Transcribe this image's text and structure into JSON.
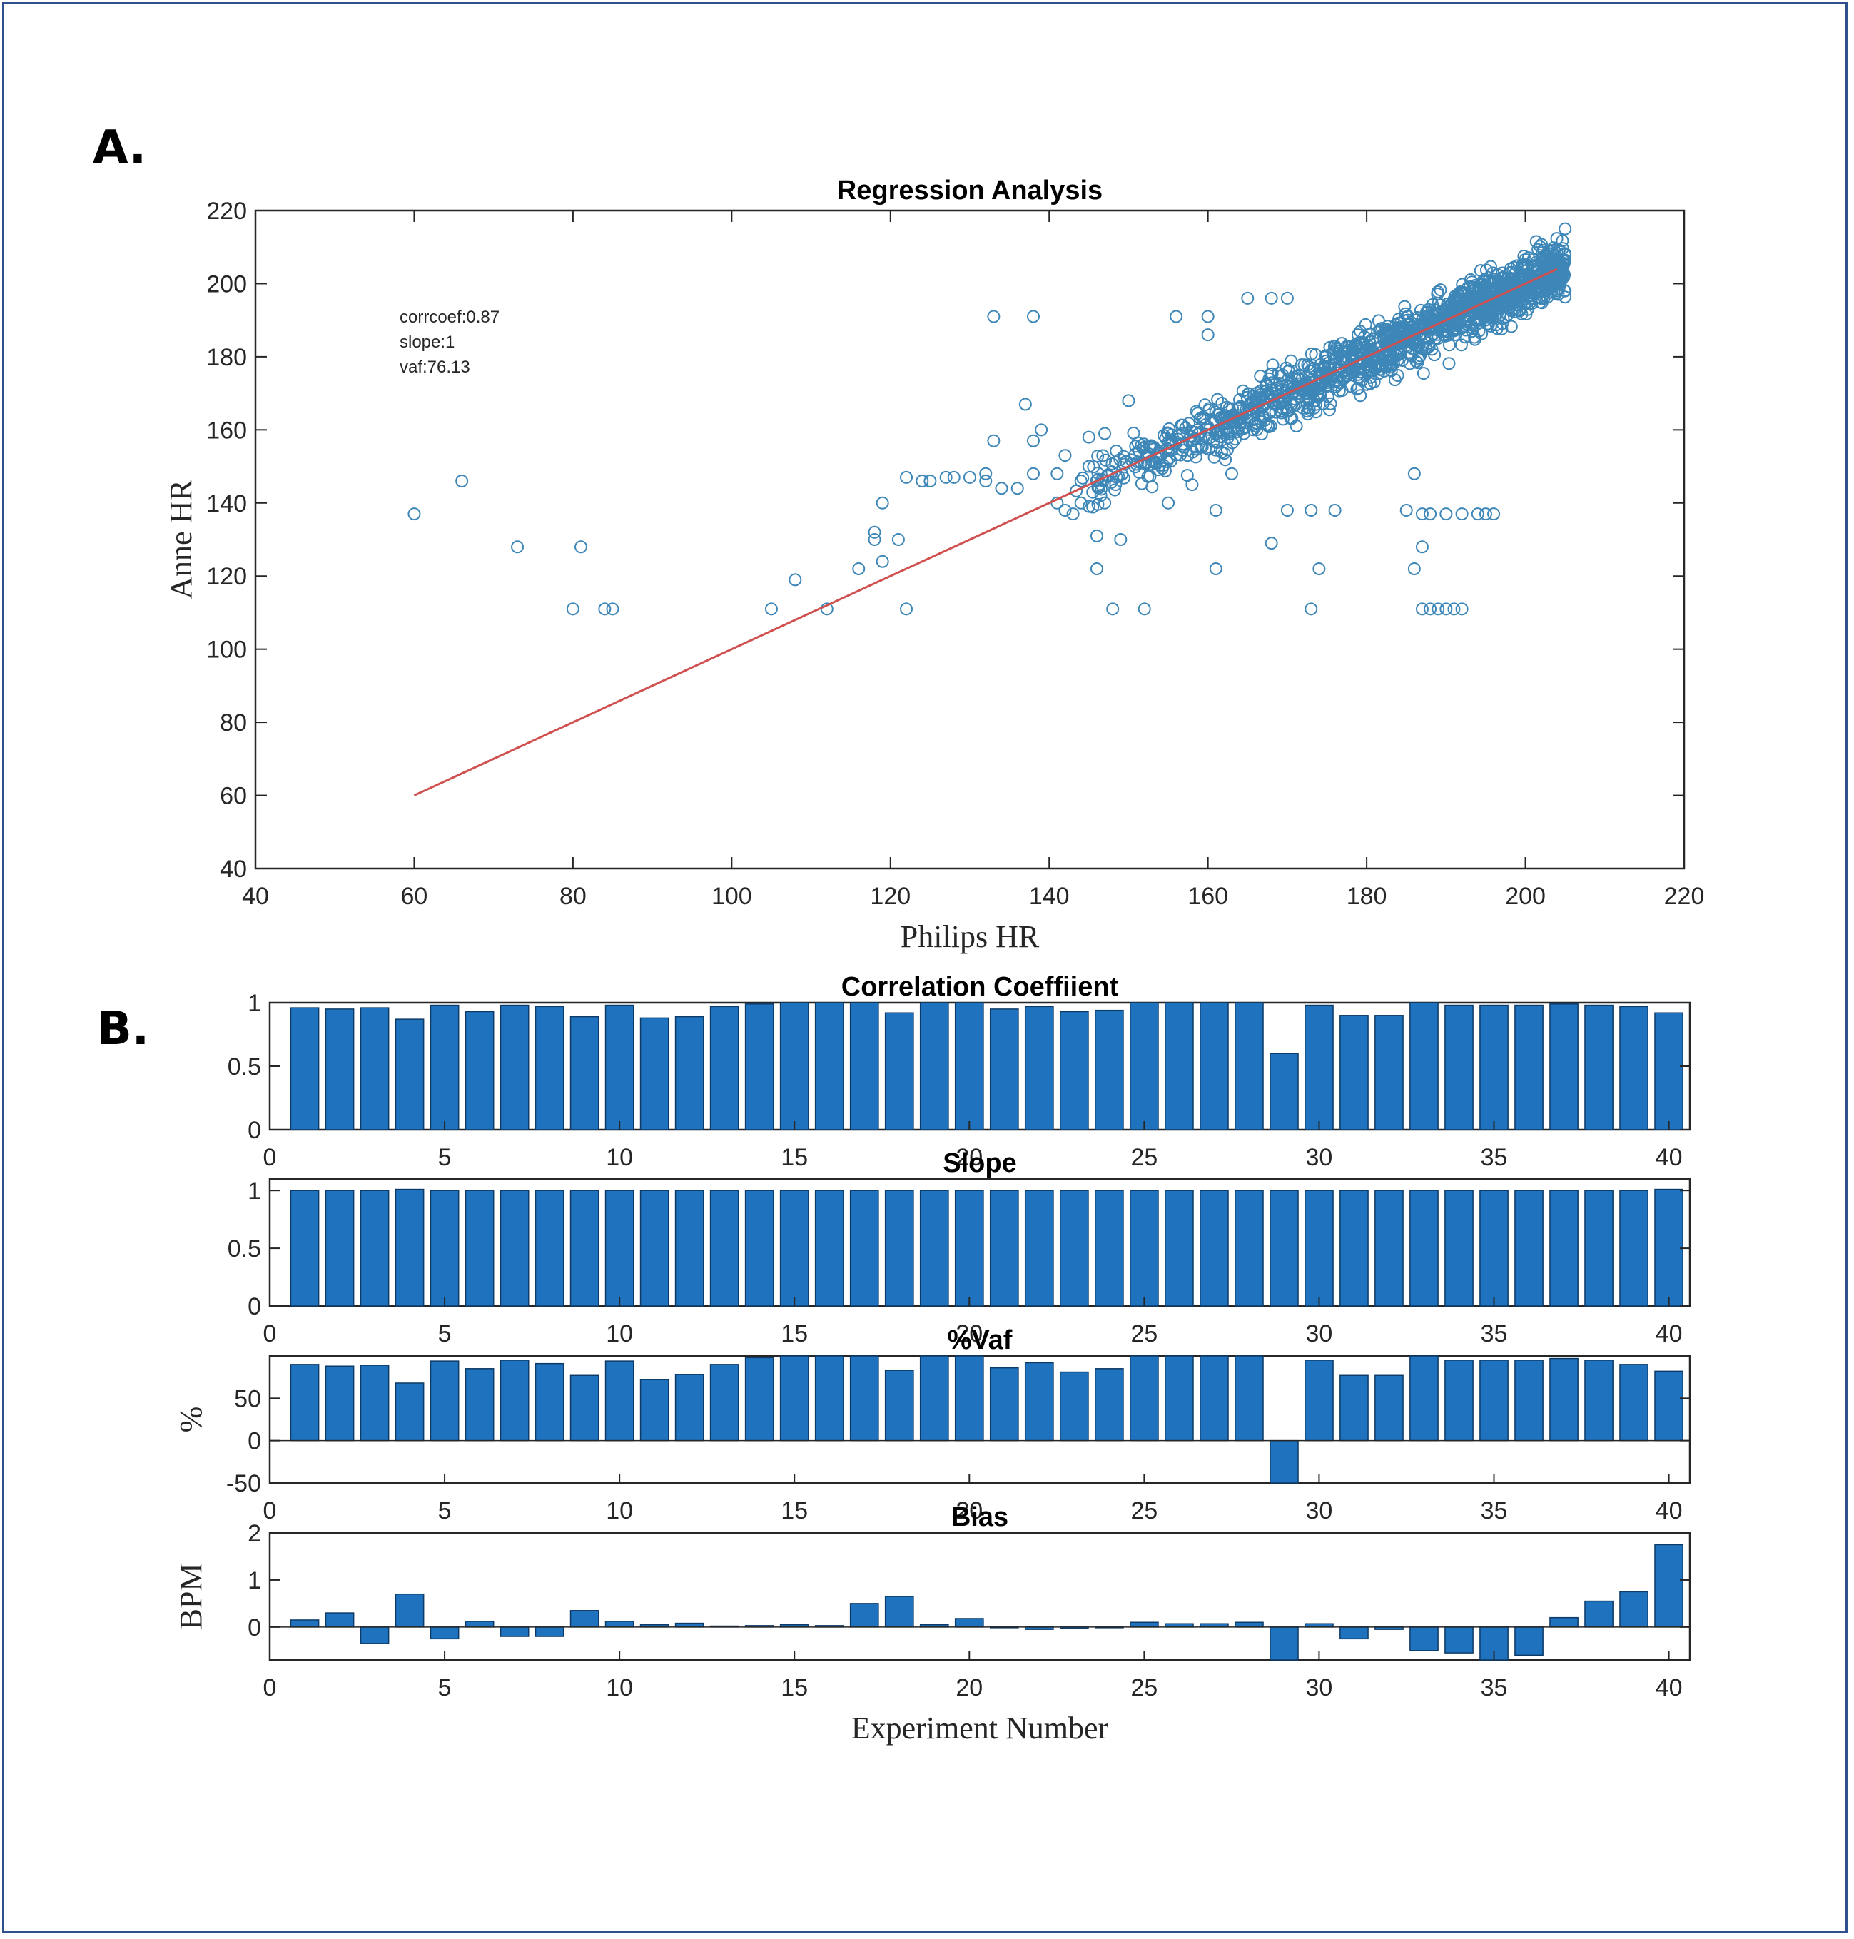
{
  "panels": {
    "a_label": "A.",
    "b_label": "B."
  },
  "chart_data": [
    {
      "type": "scatter",
      "title": "Regression Analysis",
      "xlabel": "Philips HR",
      "ylabel": "Anne HR",
      "xlim": [
        40,
        220
      ],
      "ylim": [
        40,
        220
      ],
      "xticks": [
        40,
        60,
        80,
        100,
        120,
        140,
        160,
        180,
        200,
        220
      ],
      "yticks": [
        40,
        60,
        80,
        100,
        120,
        140,
        160,
        180,
        200,
        220
      ],
      "annotations": [
        "corrcoef:0.87",
        "slope:1",
        "vaf:76.13"
      ],
      "marker_color": "#3d86b8",
      "fit_line": {
        "color": "#d05050",
        "x": [
          60,
          204
        ],
        "y": [
          60,
          204
        ]
      },
      "outliers": [
        [
          60,
          137
        ],
        [
          66,
          146
        ],
        [
          73,
          128
        ],
        [
          80,
          111
        ],
        [
          81,
          128
        ],
        [
          84,
          111
        ],
        [
          85,
          111
        ],
        [
          105,
          111
        ],
        [
          108,
          119
        ],
        [
          112,
          111
        ],
        [
          116,
          122
        ],
        [
          118,
          130
        ],
        [
          118,
          132
        ],
        [
          119,
          124
        ],
        [
          119,
          140
        ],
        [
          121,
          130
        ],
        [
          122,
          111
        ],
        [
          122,
          147
        ],
        [
          124,
          146
        ],
        [
          125,
          146
        ],
        [
          127,
          147
        ],
        [
          128,
          147
        ],
        [
          130,
          147
        ],
        [
          132,
          148
        ],
        [
          132,
          146
        ],
        [
          133,
          191
        ],
        [
          133,
          157
        ],
        [
          134,
          144
        ],
        [
          136,
          144
        ],
        [
          138,
          191
        ],
        [
          138,
          148
        ],
        [
          138,
          157
        ],
        [
          139,
          160
        ],
        [
          141,
          140
        ],
        [
          141,
          148
        ],
        [
          142,
          153
        ],
        [
          142,
          138
        ],
        [
          144,
          140
        ],
        [
          145,
          150
        ],
        [
          143,
          137
        ],
        [
          144,
          146
        ],
        [
          145,
          158
        ],
        [
          146,
          131
        ],
        [
          146,
          122
        ],
        [
          147,
          159
        ],
        [
          147,
          140
        ],
        [
          148,
          111
        ],
        [
          149,
          130
        ],
        [
          150,
          168
        ],
        [
          152,
          111
        ],
        [
          161,
          122
        ],
        [
          161,
          138
        ],
        [
          168,
          129
        ],
        [
          170,
          138
        ],
        [
          173,
          111
        ],
        [
          173,
          138
        ],
        [
          174,
          122
        ],
        [
          176,
          138
        ],
        [
          185,
          138
        ],
        [
          186,
          148
        ],
        [
          186,
          122
        ],
        [
          187,
          128
        ],
        [
          187,
          111
        ],
        [
          188,
          111
        ],
        [
          189,
          111
        ],
        [
          190,
          111
        ],
        [
          191,
          111
        ],
        [
          192,
          111
        ],
        [
          187,
          137
        ],
        [
          188,
          137
        ],
        [
          190,
          137
        ],
        [
          192,
          137
        ],
        [
          194,
          137
        ],
        [
          195,
          137
        ],
        [
          196,
          137
        ],
        [
          137,
          167
        ],
        [
          156,
          191
        ],
        [
          160,
          186
        ],
        [
          160,
          191
        ],
        [
          165,
          196
        ],
        [
          168,
          196
        ],
        [
          170,
          196
        ],
        [
          205,
          215
        ],
        [
          204,
          198
        ],
        [
          205,
          198
        ],
        [
          155,
          140
        ],
        [
          158,
          145
        ],
        [
          163,
          148
        ]
      ],
      "cloud": {
        "x_range": [
          143,
          205
        ],
        "slope": 1,
        "intercept": 0,
        "spread": 6,
        "count": 1400
      }
    },
    {
      "type": "bar",
      "title": "Correlation Coeffiient",
      "ylabel": "",
      "xlabel": "",
      "xlim": [
        0,
        40.6
      ],
      "ylim": [
        0,
        1
      ],
      "yticks": [
        0,
        0.5,
        1
      ],
      "ytick_labels": [
        "0",
        "0.5",
        "1"
      ],
      "xticks": [
        0,
        5,
        10,
        15,
        20,
        25,
        30,
        35,
        40
      ],
      "color": "#1f72bd",
      "x": [
        1,
        2,
        3,
        4,
        5,
        6,
        7,
        8,
        9,
        10,
        11,
        12,
        13,
        14,
        15,
        16,
        17,
        18,
        19,
        20,
        21,
        22,
        23,
        24,
        25,
        26,
        27,
        28,
        29,
        30,
        31,
        32,
        33,
        34,
        35,
        36,
        37,
        38,
        39,
        40
      ],
      "values": [
        0.96,
        0.95,
        0.96,
        0.87,
        0.98,
        0.93,
        0.98,
        0.97,
        0.89,
        0.98,
        0.88,
        0.89,
        0.97,
        0.99,
        1.0,
        1.0,
        1.0,
        0.92,
        1.0,
        1.0,
        0.95,
        0.97,
        0.93,
        0.94,
        1.0,
        1.0,
        1.0,
        1.0,
        0.6,
        0.98,
        0.9,
        0.9,
        1.0,
        0.98,
        0.98,
        0.98,
        0.99,
        0.98,
        0.97,
        0.92
      ]
    },
    {
      "type": "bar",
      "title": "Slope",
      "ylabel": "",
      "xlabel": "",
      "xlim": [
        0,
        40.6
      ],
      "ylim": [
        0,
        1.1
      ],
      "yticks": [
        0,
        0.5,
        1
      ],
      "ytick_labels": [
        "0",
        "0.5",
        "1"
      ],
      "xticks": [
        0,
        5,
        10,
        15,
        20,
        25,
        30,
        35,
        40
      ],
      "color": "#1f72bd",
      "x": [
        1,
        2,
        3,
        4,
        5,
        6,
        7,
        8,
        9,
        10,
        11,
        12,
        13,
        14,
        15,
        16,
        17,
        18,
        19,
        20,
        21,
        22,
        23,
        24,
        25,
        26,
        27,
        28,
        29,
        30,
        31,
        32,
        33,
        34,
        35,
        36,
        37,
        38,
        39,
        40
      ],
      "values": [
        1.0,
        1.0,
        1.0,
        1.01,
        1.0,
        1.0,
        1.0,
        1.0,
        1.0,
        1.0,
        1.0,
        1.0,
        1.0,
        1.0,
        1.0,
        1.0,
        1.0,
        1.0,
        1.0,
        1.0,
        1.0,
        1.0,
        1.0,
        1.0,
        1.0,
        1.0,
        1.0,
        1.0,
        1.0,
        1.0,
        1.0,
        1.0,
        1.0,
        1.0,
        1.0,
        1.0,
        1.0,
        1.0,
        1.0,
        1.01
      ]
    },
    {
      "type": "bar",
      "title": "%Vaf",
      "ylabel": "%",
      "xlabel": "",
      "xlim": [
        0,
        40.6
      ],
      "ylim": [
        -50,
        100
      ],
      "yticks": [
        -50,
        0,
        50
      ],
      "ytick_labels": [
        "-50",
        "0",
        "50"
      ],
      "xticks": [
        0,
        5,
        10,
        15,
        20,
        25,
        30,
        35,
        40
      ],
      "color": "#1f72bd",
      "x": [
        1,
        2,
        3,
        4,
        5,
        6,
        7,
        8,
        9,
        10,
        11,
        12,
        13,
        14,
        15,
        16,
        17,
        18,
        19,
        20,
        21,
        22,
        23,
        24,
        25,
        26,
        27,
        28,
        29,
        30,
        31,
        32,
        33,
        34,
        35,
        36,
        37,
        38,
        39,
        40
      ],
      "values": [
        90,
        88,
        89,
        68,
        94,
        85,
        95,
        91,
        77,
        94,
        72,
        78,
        90,
        98,
        100,
        100,
        100,
        83,
        100,
        100,
        86,
        92,
        81,
        85,
        100,
        100,
        100,
        100,
        -50,
        95,
        77,
        77,
        100,
        95,
        95,
        95,
        97,
        95,
        90,
        82
      ]
    },
    {
      "type": "bar",
      "title": "Bias",
      "ylabel": "BPM",
      "xlabel": "Experiment Number",
      "xlim": [
        0,
        40.6
      ],
      "ylim": [
        -0.7,
        2
      ],
      "yticks": [
        0,
        1,
        2
      ],
      "ytick_labels": [
        "0",
        "1",
        "2"
      ],
      "xticks": [
        0,
        5,
        10,
        15,
        20,
        25,
        30,
        35,
        40
      ],
      "color": "#1f72bd",
      "x": [
        1,
        2,
        3,
        4,
        5,
        6,
        7,
        8,
        9,
        10,
        11,
        12,
        13,
        14,
        15,
        16,
        17,
        18,
        19,
        20,
        21,
        22,
        23,
        24,
        25,
        26,
        27,
        28,
        29,
        30,
        31,
        32,
        33,
        34,
        35,
        36,
        37,
        38,
        39,
        40
      ],
      "values": [
        0.15,
        0.3,
        -0.35,
        0.7,
        -0.25,
        0.12,
        -0.2,
        -0.2,
        0.35,
        0.12,
        0.05,
        0.08,
        0.02,
        0.03,
        0.05,
        0.03,
        0.5,
        0.65,
        0.05,
        0.18,
        0.0,
        -0.05,
        -0.03,
        0.0,
        0.1,
        0.07,
        0.07,
        0.1,
        -0.7,
        0.07,
        -0.25,
        -0.05,
        -0.5,
        -0.55,
        -0.7,
        -0.6,
        0.2,
        0.55,
        0.75,
        1.75
      ]
    }
  ]
}
